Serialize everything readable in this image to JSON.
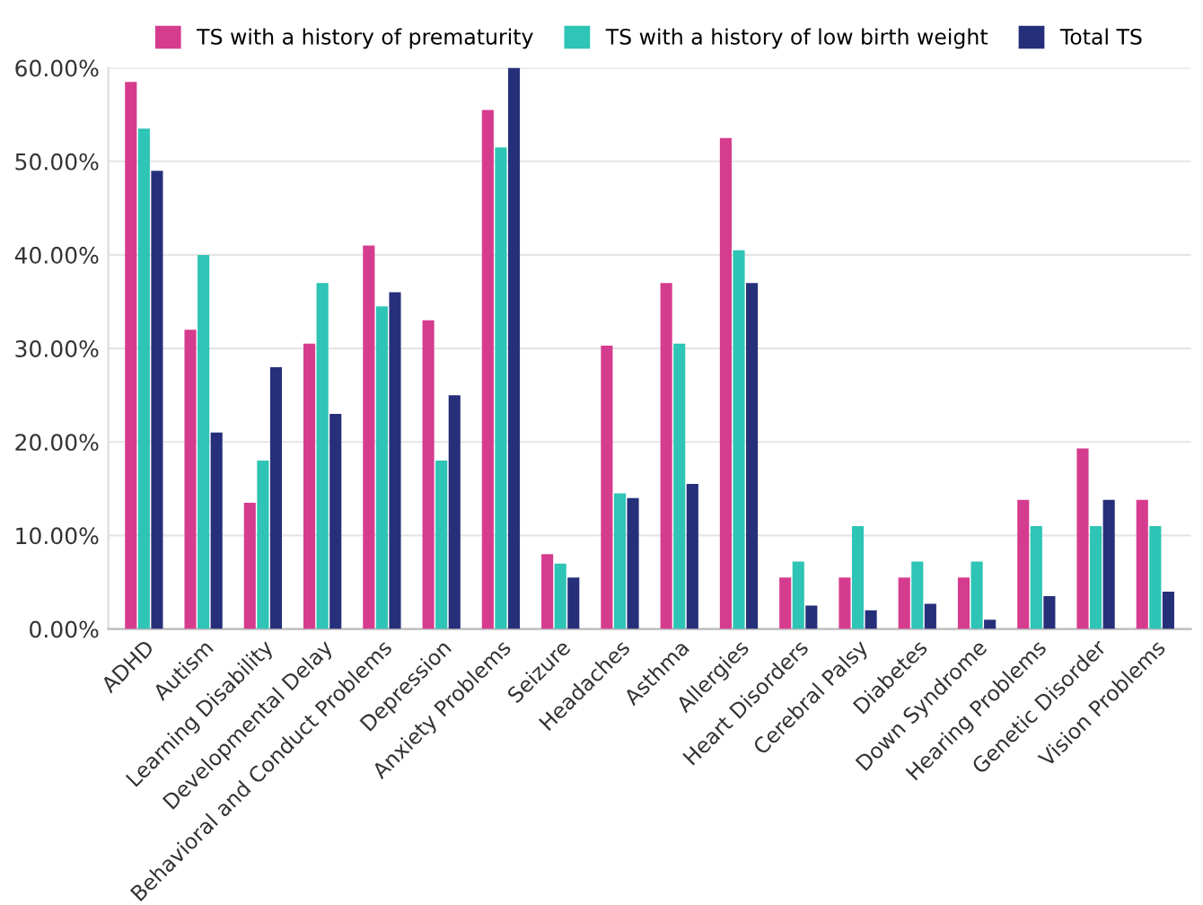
{
  "chart_data": {
    "type": "bar",
    "categories": [
      "ADHD",
      "Autism",
      "Learning Disability",
      "Developmental Delay",
      "Behavioral and Conduct Problems",
      "Depression",
      "Anxiety Problems",
      "Seizure",
      "Headaches",
      "Asthma",
      "Allergies",
      "Heart Disorders",
      "Cerebral Palsy",
      "Diabetes",
      "Down Syndrome",
      "Hearing Problems",
      "Genetic Disorder",
      "Vision Problems"
    ],
    "series": [
      {
        "name": "TS with a history of prematurity",
        "color": "#d63c8e",
        "values": [
          58.5,
          32,
          13.5,
          30.5,
          41,
          33,
          55.5,
          8,
          30.3,
          37,
          52.5,
          5.5,
          5.5,
          5.5,
          5.5,
          13.8,
          19.3,
          13.8
        ]
      },
      {
        "name": "TS with a history of low birth weight",
        "color": "#2ec4b6",
        "values": [
          53.5,
          40,
          18,
          37,
          34.5,
          18,
          51.5,
          7,
          14.5,
          30.5,
          40.5,
          7.2,
          11,
          7.2,
          7.2,
          11,
          11,
          11
        ]
      },
      {
        "name": "Total TS",
        "color": "#26307a",
        "values": [
          49,
          21,
          28,
          23,
          36,
          25,
          60,
          5.5,
          14,
          15.5,
          37,
          2.5,
          2,
          2.7,
          1,
          3.5,
          13.8,
          4
        ]
      }
    ],
    "ylim": [
      0,
      60
    ],
    "yticks": [
      {
        "value": 0,
        "label": "0.00%"
      },
      {
        "value": 10,
        "label": "10.00%"
      },
      {
        "value": 20,
        "label": "20.00%"
      },
      {
        "value": 30,
        "label": "30.00%"
      },
      {
        "value": 40,
        "label": "40.00%"
      },
      {
        "value": 50,
        "label": "50.00%"
      },
      {
        "value": 60,
        "label": "60.00%"
      }
    ],
    "grid": "y",
    "legend": "top"
  }
}
